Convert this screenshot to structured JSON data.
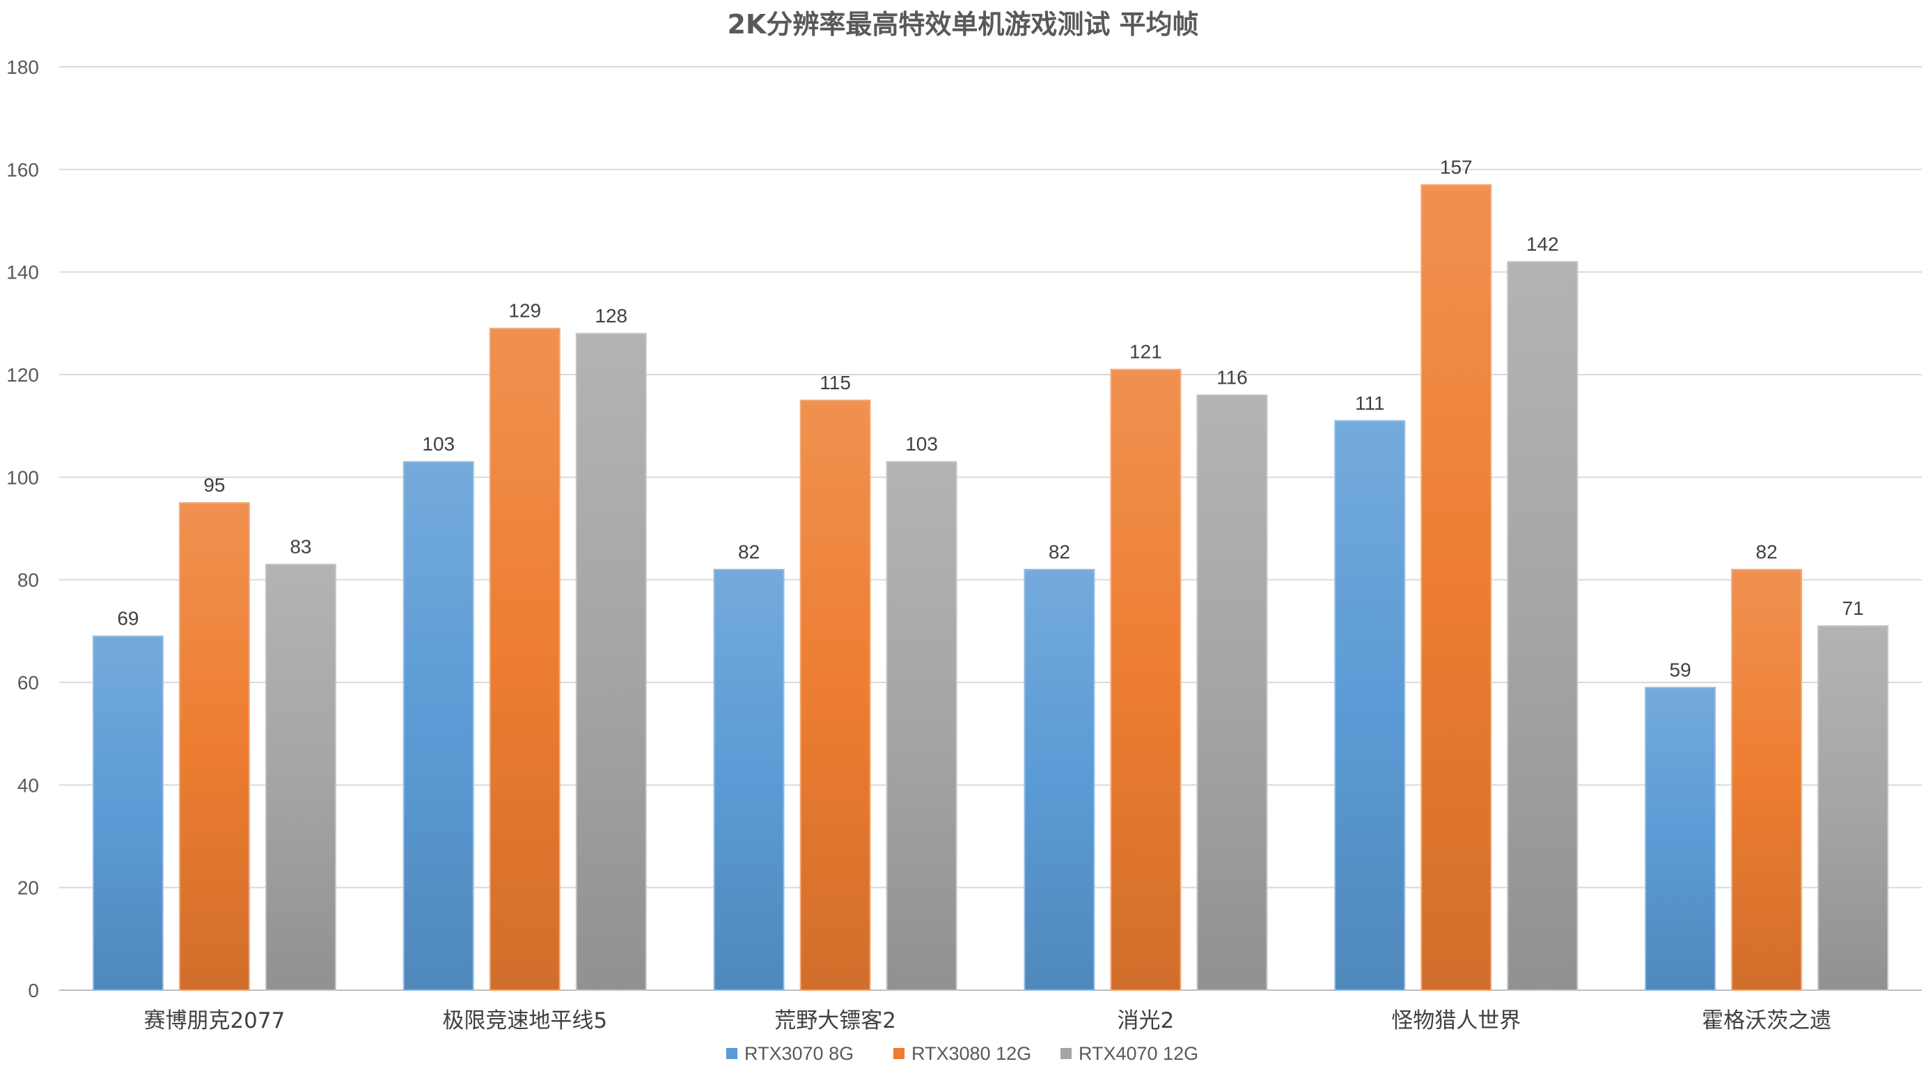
{
  "chart_data": {
    "type": "bar",
    "title": "2K分辨率最高特效单机游戏测试  平均帧",
    "categories": [
      "赛博朋克2077",
      "极限竞速地平线5",
      "荒野大镖客2",
      "消光2",
      "怪物猎人世界",
      "霍格沃茨之遗"
    ],
    "series": [
      {
        "name": "RTX3070 8G",
        "values": [
          69,
          103,
          82,
          82,
          111,
          59
        ],
        "color": "#5B9BD5"
      },
      {
        "name": "RTX3080 12G",
        "values": [
          95,
          129,
          115,
          121,
          157,
          82
        ],
        "color": "#ED7D31"
      },
      {
        "name": "RTX4070 12G",
        "values": [
          83,
          128,
          103,
          116,
          142,
          71
        ],
        "color": "#A5A5A5"
      }
    ],
    "ylim": [
      0,
      180
    ],
    "yticks": [
      0,
      20,
      40,
      60,
      80,
      100,
      120,
      140,
      160,
      180
    ],
    "grid": true,
    "legend_position": "bottom",
    "data_labels": true
  }
}
